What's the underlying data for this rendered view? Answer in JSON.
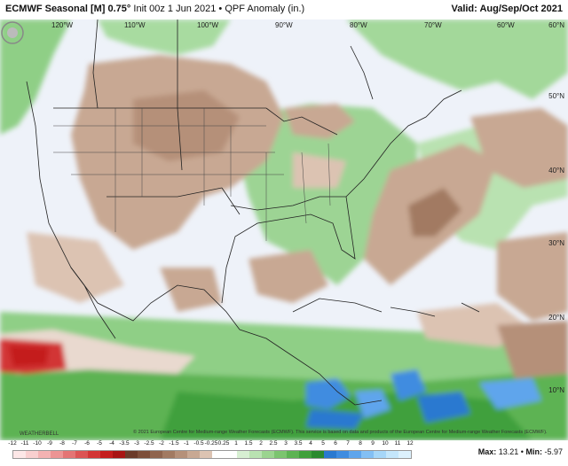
{
  "header": {
    "model": "ECMWF Seasonal [M] 0.75°",
    "init": "Init 00z 1 Jun 2021",
    "separator": "•",
    "field": "QPF Anomaly (in.)",
    "valid": "Valid: Aug/Sep/Oct 2021"
  },
  "map": {
    "lon_labels": [
      "120°W",
      "110°W",
      "100°W",
      "90°W",
      "80°W",
      "70°W",
      "60°W"
    ],
    "lat_labels": [
      "60°N",
      "50°N",
      "40°N",
      "30°N",
      "20°N",
      "10°N"
    ],
    "copyright": "© 2021 European Centre for Medium-range Weather Forecasts (ECMWF). This service is based on data and products of the European Centre for Medium-range Weather Forecasts (ECMWF).",
    "logo_text": "WEATHERBELL"
  },
  "legend": {
    "ticks": [
      "-12",
      "-11",
      "-10",
      "-9",
      "-8",
      "-7",
      "-6",
      "-5",
      "-4",
      "-3.5",
      "-3",
      "-2.5",
      "-2",
      "-1.5",
      "-1",
      "-0.5",
      "-0.25",
      "0.25",
      "1",
      "1.5",
      "2",
      "2.5",
      "3",
      "3.5",
      "4",
      "5",
      "6",
      "7",
      "8",
      "9",
      "10",
      "11",
      "12"
    ],
    "colors": [
      "#fde7e7",
      "#f9cfcf",
      "#f3b2b2",
      "#ec9494",
      "#e47474",
      "#dc5454",
      "#d23636",
      "#c41d1d",
      "#a81414",
      "#6b3a2a",
      "#7d4e3a",
      "#8f644e",
      "#a27a62",
      "#b59079",
      "#c8a893",
      "#dcc3b2",
      "#ffffff",
      "#ffffff",
      "#d7efd2",
      "#b9e2b1",
      "#9bd48f",
      "#7cc46f",
      "#5db353",
      "#40a03c",
      "#2b8a2f",
      "#2a79d0",
      "#3f8ce0",
      "#5fa5ec",
      "#83bff4",
      "#a6d6f8",
      "#c4e6fb",
      "#dcf1fd"
    ],
    "max_label": "Max:",
    "max_value": "13.21",
    "min_label": "Min:",
    "min_value": "-5.97",
    "sep": "•"
  }
}
